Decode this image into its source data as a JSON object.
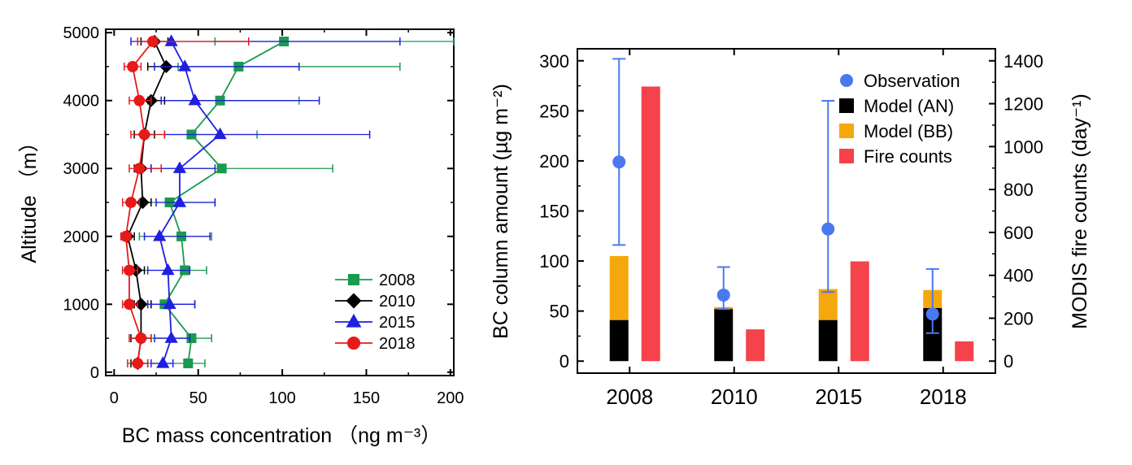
{
  "chart_data": [
    {
      "type": "line",
      "orientation": "profile",
      "xlabel": "BC mass concentration （ng m⁻³）",
      "ylabel": "Altitude （m）",
      "xlim": [
        -5,
        202
      ],
      "ylim": [
        -50,
        5050
      ],
      "xticks": [
        "0",
        "50",
        "100",
        "150",
        "200"
      ],
      "yticks": [
        "0",
        "1000",
        "2000",
        "3000",
        "4000",
        "5000"
      ],
      "legend_position": "bottom-right",
      "series": [
        {
          "name": "2008",
          "color": "#1a9a4e",
          "marker": "square",
          "altitude": [
            130,
            500,
            1000,
            1500,
            2000,
            2500,
            3000,
            3500,
            4000,
            4500,
            4870
          ],
          "value": [
            44,
            46,
            30,
            42,
            40,
            33,
            64,
            46,
            63,
            74,
            101
          ],
          "err_low": [
            14,
            14,
            8,
            13,
            15,
            12,
            28,
            20,
            20,
            38,
            60
          ],
          "err_high": [
            54,
            58,
            48,
            55,
            58,
            60,
            130,
            85,
            110,
            170,
            202
          ]
        },
        {
          "name": "2010",
          "color": "#000000",
          "marker": "diamond",
          "altitude": [
            130,
            500,
            1000,
            1500,
            2000,
            2500,
            3000,
            3500,
            4000,
            4500,
            4870
          ],
          "value": [
            14,
            16,
            16,
            13,
            8,
            17,
            16,
            18,
            22,
            31,
            24
          ],
          "err_low": [
            10,
            10,
            12,
            10,
            6,
            12,
            12,
            12,
            15,
            20,
            16
          ],
          "err_high": [
            20,
            22,
            22,
            18,
            12,
            22,
            22,
            24,
            30,
            42,
            32
          ]
        },
        {
          "name": "2015",
          "color": "#1f1fe0",
          "marker": "triangle",
          "altitude": [
            130,
            500,
            1000,
            1500,
            2000,
            2500,
            3000,
            3500,
            4000,
            4500,
            4870
          ],
          "value": [
            29,
            34,
            33,
            32,
            27,
            39,
            39,
            63,
            48,
            42,
            34
          ],
          "err_low": [
            22,
            24,
            20,
            20,
            18,
            25,
            22,
            30,
            28,
            24,
            10
          ],
          "err_high": [
            35,
            45,
            48,
            45,
            57,
            60,
            60,
            152,
            122,
            110,
            170
          ]
        },
        {
          "name": "2018",
          "color": "#e81919",
          "marker": "circle",
          "altitude": [
            130,
            500,
            1000,
            1500,
            2000,
            2500,
            3000,
            3500,
            4000,
            4500,
            4870
          ],
          "value": [
            14,
            16,
            9,
            9,
            7,
            10,
            15,
            18,
            15,
            11,
            23
          ],
          "err_low": [
            8,
            9,
            5,
            5,
            4,
            5,
            9,
            10,
            9,
            6,
            14
          ],
          "err_high": [
            20,
            22,
            14,
            14,
            10,
            15,
            28,
            30,
            22,
            16,
            80
          ]
        }
      ]
    },
    {
      "type": "bar",
      "categories": [
        "2008",
        "2010",
        "2015",
        "2018"
      ],
      "ylabel": "BC column amount  (µg m⁻²)",
      "y2label": "MODIS fire counts (day⁻¹)",
      "ylim": [
        -12,
        312
      ],
      "y2lim": [
        -56,
        1456
      ],
      "yticks": [
        "0",
        "50",
        "100",
        "150",
        "200",
        "250",
        "300"
      ],
      "y2ticks": [
        "0",
        "200",
        "400",
        "600",
        "800",
        "1000",
        "1200",
        "1400"
      ],
      "legend_position": "top-right",
      "series": [
        {
          "name": "Model (AN)",
          "color": "#000000",
          "axis": "left",
          "values": [
            41,
            52,
            41,
            53
          ]
        },
        {
          "name": "Model (BB)",
          "color": "#f5a80d",
          "axis": "left",
          "values": [
            64,
            2,
            31,
            18
          ]
        },
        {
          "name": "Fire counts",
          "color": "#f5424b",
          "axis": "right",
          "values": [
            1280,
            148,
            465,
            92
          ]
        },
        {
          "name": "Observation",
          "color": "#4a78f0",
          "axis": "left",
          "values": [
            199,
            66,
            132,
            47
          ],
          "err_low": [
            116,
            52,
            69,
            28
          ],
          "err_high": [
            302,
            94,
            260,
            92
          ]
        }
      ],
      "legend_order": [
        "Observation",
        "Model (AN)",
        "Model (BB)",
        "Fire counts"
      ]
    }
  ]
}
